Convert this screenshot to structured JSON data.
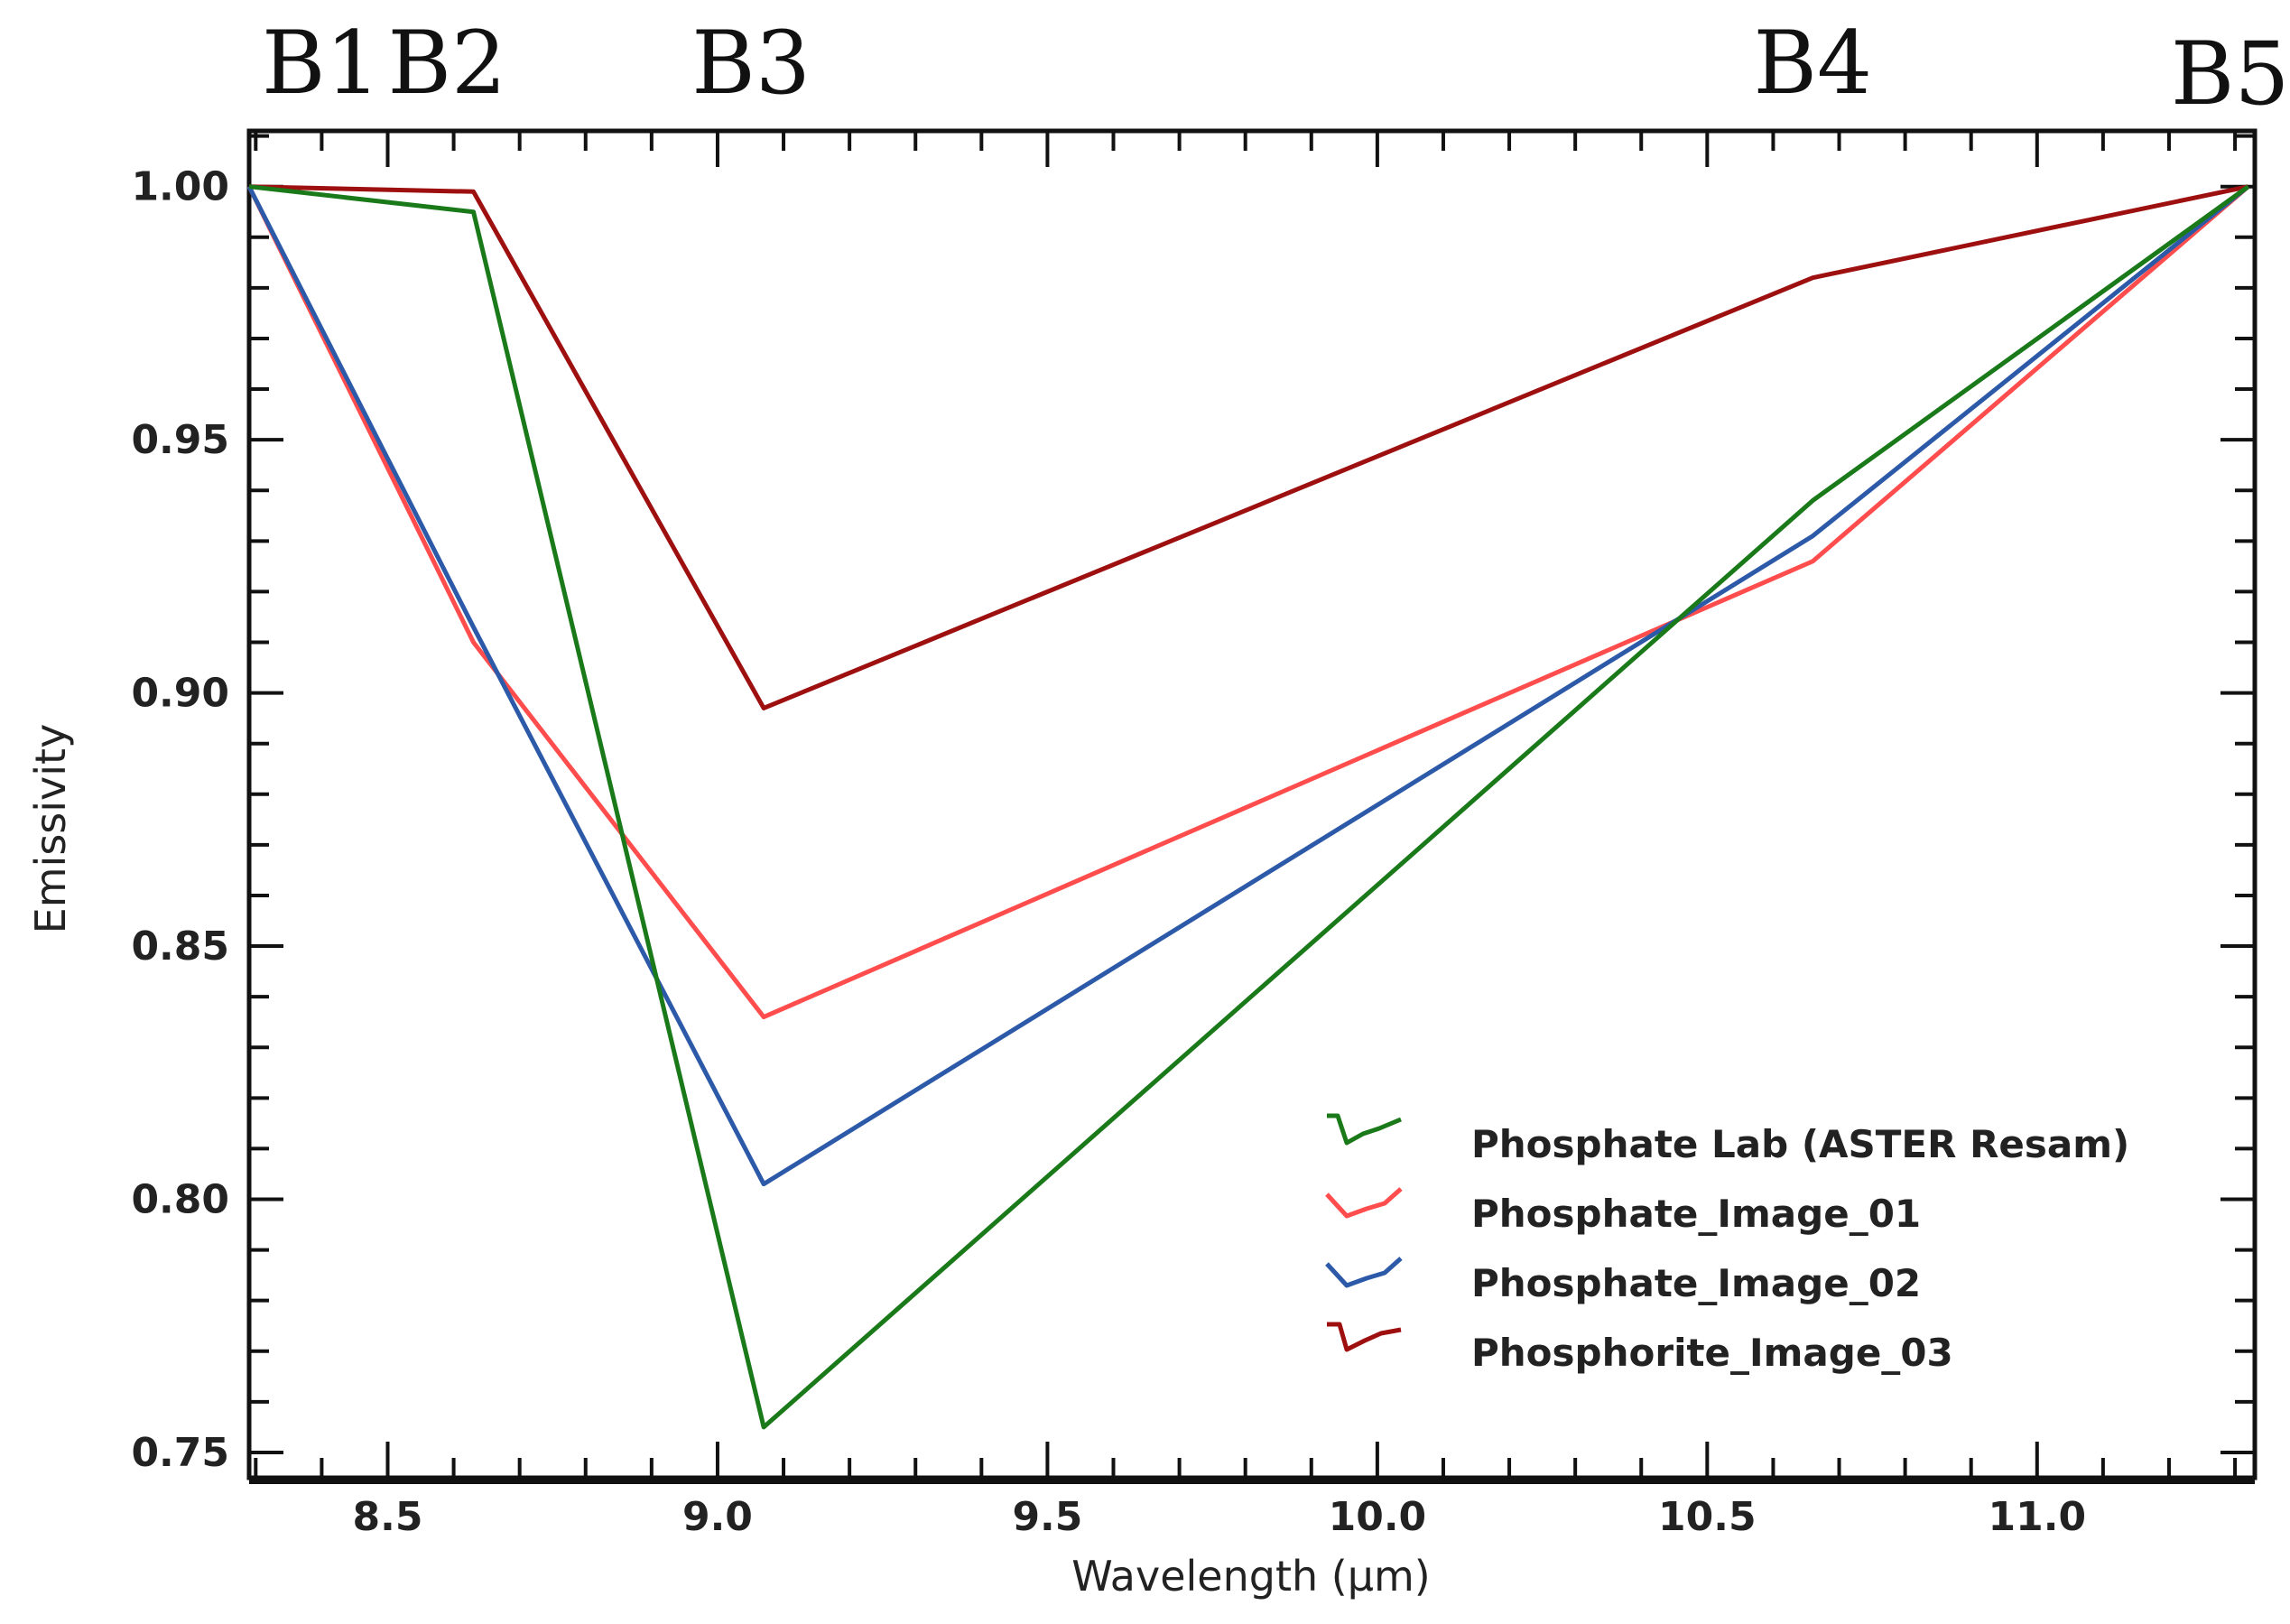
{
  "chart_data": {
    "type": "line",
    "title": "",
    "xlabel": "Wavelength (µm)",
    "ylabel": "Emissivity",
    "xlim": [
      8.29,
      11.33
    ],
    "ylim": [
      0.745,
      1.011
    ],
    "xticks": [
      8.5,
      9.0,
      9.5,
      10.0,
      10.5,
      11.0
    ],
    "xtick_labels": [
      "8.5",
      "9.0",
      "9.5",
      "10.0",
      "10.5",
      "11.0"
    ],
    "yticks": [
      0.75,
      0.8,
      0.85,
      0.9,
      0.95,
      1.0
    ],
    "ytick_labels": [
      "0.75",
      "0.80",
      "0.85",
      "0.90",
      "0.95",
      "1.00"
    ],
    "grid": false,
    "legend_position": "bottom-right",
    "band_labels": [
      {
        "label": "B1",
        "x": 8.29
      },
      {
        "label": "B2",
        "x": 8.63
      },
      {
        "label": "B3",
        "x": 9.07
      },
      {
        "label": "B4",
        "x": 10.66
      },
      {
        "label": "B5",
        "x": 11.32
      }
    ],
    "x": [
      8.29,
      8.63,
      9.07,
      10.66,
      11.32
    ],
    "series": [
      {
        "name": "Phosphate Lab (ASTER Resam)",
        "color": "#1a7a1a",
        "values": [
          1.0,
          0.995,
          0.755,
          0.938,
          1.0
        ]
      },
      {
        "name": "Phosphate_Image_01",
        "color": "#ff4d4d",
        "values": [
          1.0,
          0.91,
          0.836,
          0.926,
          1.0
        ]
      },
      {
        "name": "Phosphate_Image_02",
        "color": "#2c5aa8",
        "values": [
          1.0,
          0.913,
          0.803,
          0.931,
          1.0
        ]
      },
      {
        "name": "Phosphorite_Image_03",
        "color": "#9e1010",
        "values": [
          1.0,
          0.999,
          0.897,
          0.982,
          1.0
        ]
      }
    ]
  }
}
